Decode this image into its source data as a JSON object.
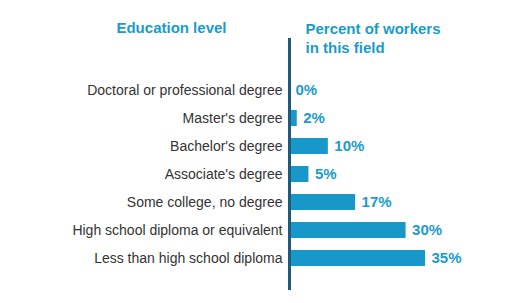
{
  "chart_data": {
    "type": "bar",
    "orientation": "horizontal",
    "y_label": "Education level",
    "x_label": "Percent of workers\nin this field",
    "categories": [
      "Doctoral or professional degree",
      "Master's degree",
      "Bachelor's degree",
      "Associate's degree",
      "Some college, no degree",
      "High school diploma or equivalent",
      "Less than high school diploma"
    ],
    "values": [
      0,
      2,
      10,
      5,
      17,
      30,
      35
    ],
    "value_labels": [
      "0%",
      "2%",
      "10%",
      "5%",
      "17%",
      "30%",
      "35%"
    ],
    "color": "#1798c9",
    "xlim": [
      0,
      35
    ],
    "grid": false,
    "data_labels": true,
    "tick_labels": "y"
  }
}
